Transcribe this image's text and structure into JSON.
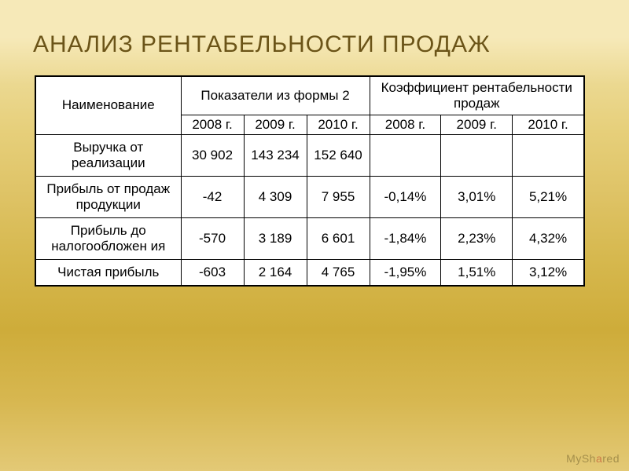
{
  "title": "Анализ рентабельности продаж",
  "table": {
    "type": "table",
    "background_color": "#ffffff",
    "border_color": "#000000",
    "font_size": 17,
    "header": {
      "name_label": "Наименование",
      "group_a": "Показатели из формы 2",
      "group_b": "Коэффициент рентабельности продаж",
      "years": [
        "2008 г.",
        "2009 г.",
        "2010 г.",
        "2008 г.",
        "2009 г.",
        "2010 г."
      ]
    },
    "rows": [
      {
        "label": "Выручка от реализации",
        "vals": [
          "30 902",
          "143 234",
          "152 640",
          "",
          "",
          ""
        ]
      },
      {
        "label": "Прибыль от продаж продукции",
        "vals": [
          "-42",
          "4 309",
          "7 955",
          "-0,14%",
          "3,01%",
          "5,21%"
        ]
      },
      {
        "label": "Прибыль до налогообложен ия",
        "vals": [
          "-570",
          "3 189",
          "6 601",
          "-1,84%",
          "2,23%",
          "4,32%"
        ]
      },
      {
        "label": "Чистая прибыль",
        "vals": [
          "-603",
          "2 164",
          "4 765",
          "-1,95%",
          "1,51%",
          "3,12%"
        ]
      }
    ]
  },
  "watermark": {
    "prefix": "MySh",
    "accent": "a",
    "suffix": "red"
  },
  "style": {
    "title_color": "#6b5418",
    "title_fontsize": 30,
    "bg_gradient": [
      "#f6e9b8",
      "#ebd890",
      "#dfc468",
      "#ceac3a",
      "#e3c976"
    ]
  }
}
